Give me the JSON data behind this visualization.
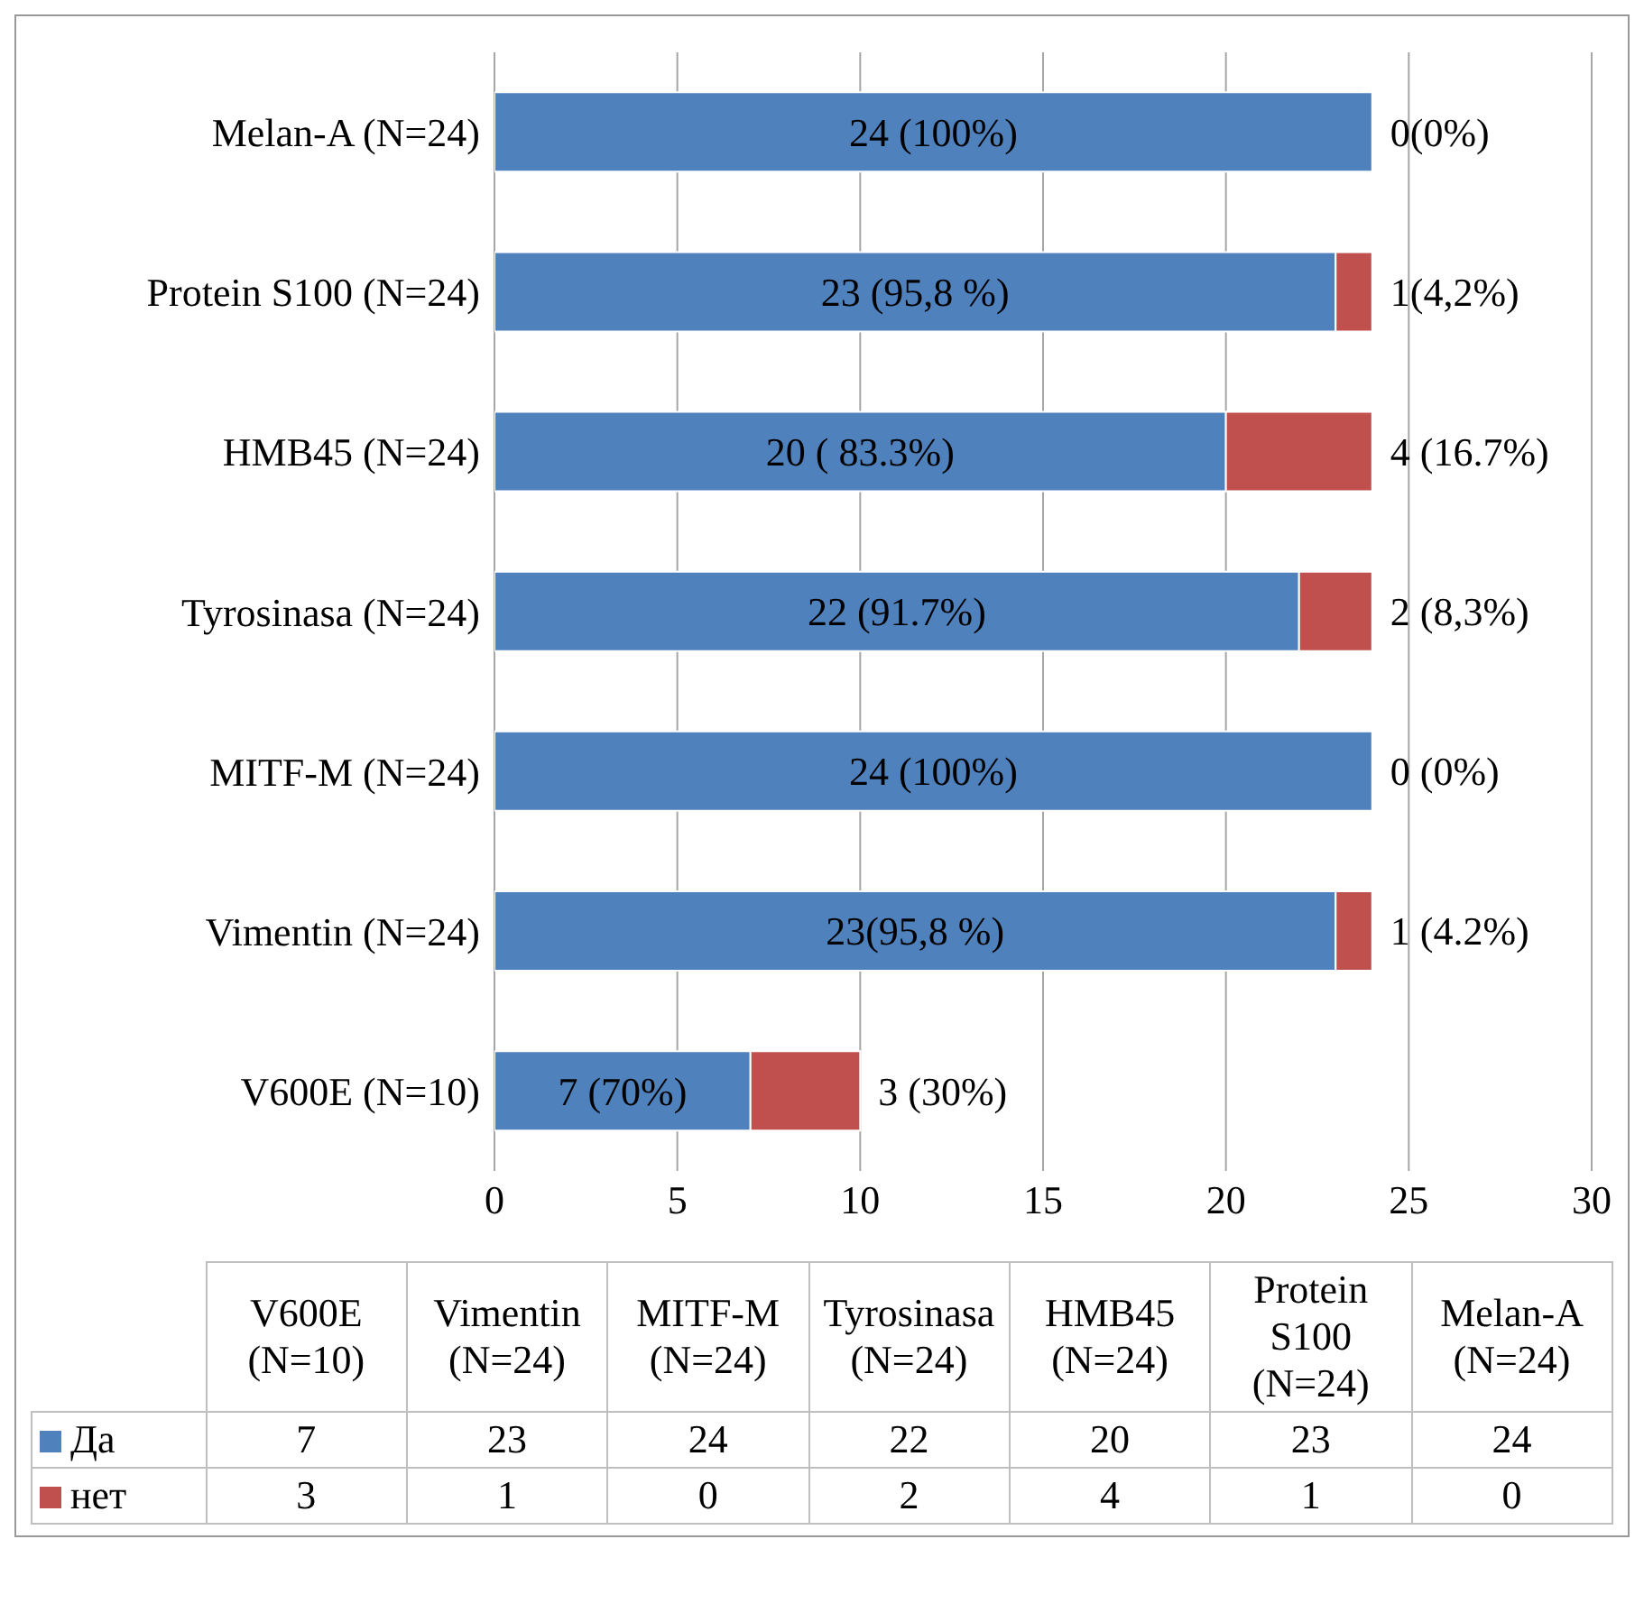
{
  "chart_data": [
    {
      "type": "bar",
      "orientation": "horizontal",
      "stacked": true,
      "categories": [
        "Melan-A (N=24)",
        "Protein S100 (N=24)",
        "HMB45 (N=24)",
        "Tyrosinasa (N=24)",
        "MITF-M (N=24)",
        "Vimentin (N=24)",
        "V600E (N=10)"
      ],
      "series": [
        {
          "color": "#4f81bd",
          "values": [
            24,
            23,
            20,
            22,
            24,
            23,
            7
          ],
          "value_labels": [
            "24 (100%)",
            "23 (95,8 %)",
            "20 ( 83.3%)",
            "22 (91.7%)",
            "24 (100%)",
            "23(95,8 %)",
            "7 (70%)"
          ]
        },
        {
          "color": "#c0504d",
          "values": [
            0,
            1,
            4,
            2,
            0,
            1,
            3
          ],
          "value_labels": [
            "0(0%)",
            "1(4,2%)",
            "4 (16.7%)",
            "2 (8,3%)",
            "0 (0%)",
            "1 (4.2%)",
            "3 (30%)"
          ]
        }
      ],
      "xlim": [
        0,
        30
      ],
      "xticks": [
        0,
        5,
        10,
        15,
        20,
        25,
        30
      ],
      "grid": "x"
    },
    {
      "type": "other",
      "categories": [
        "V600E (N=10)",
        "Vimentin (N=24)",
        "MITF-M (N=24)",
        "Tyrosinasa (N=24)",
        "HMB45 (N=24)",
        "Protein S100 (N=24)",
        "Melan-A (N=24)"
      ],
      "series": [
        {
          "name": "Да",
          "color": "#4f81bd",
          "values": [
            7,
            23,
            24,
            22,
            20,
            23,
            24
          ]
        },
        {
          "name": "нет",
          "color": "#c0504d",
          "values": [
            3,
            1,
            0,
            2,
            4,
            1,
            0
          ]
        }
      ],
      "data_labels": true,
      "legend": "left"
    }
  ]
}
